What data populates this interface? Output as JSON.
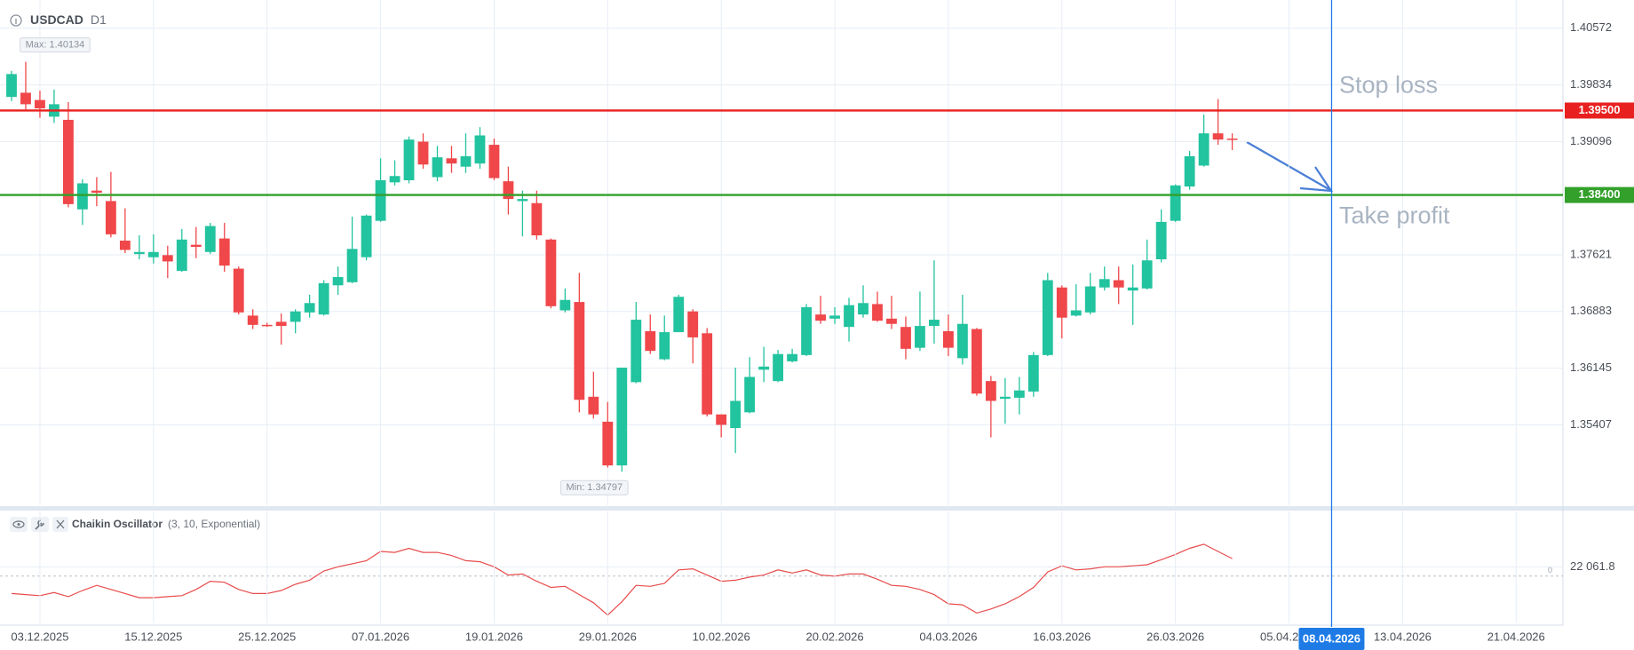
{
  "chart_data": [
    {
      "type": "candlestick",
      "symbol": "USDCAD",
      "timeframe": "D1",
      "up_color": "#22c39f",
      "down_color": "#f0474a",
      "open": [
        1.39677,
        1.39732,
        1.39637,
        1.3942,
        1.39379,
        1.38213,
        1.38457,
        1.38321,
        1.37806,
        1.37631,
        1.3759,
        1.37617,
        1.37413,
        1.37752,
        1.37658,
        1.37834,
        1.37441,
        1.3683,
        1.36709,
        1.36749,
        1.36749,
        1.36871,
        1.36844,
        1.37224,
        1.37264,
        1.3759,
        1.38064,
        1.38565,
        1.38592,
        1.39095,
        1.38633,
        1.38878,
        1.38769,
        1.3881,
        1.39054,
        1.38579,
        1.38321,
        1.38294,
        1.3782,
        1.36898,
        1.37007,
        1.35773,
        1.35448,
        1.34879,
        1.35963,
        1.36627,
        1.36261,
        1.36614,
        1.36884,
        1.366,
        1.35543,
        1.35366,
        1.3557,
        1.36125,
        1.35977,
        1.36234,
        1.36316,
        1.36844,
        1.3679,
        1.36682,
        1.36844,
        1.3698,
        1.3679,
        1.36682,
        1.36411,
        1.36695,
        1.36627,
        1.36275,
        1.36655,
        1.35977,
        1.35746,
        1.3576,
        1.35841,
        1.36316,
        1.37196,
        1.3683,
        1.36871,
        1.37196,
        1.37291,
        1.37156,
        1.37183,
        1.37563,
        1.38064,
        1.38511,
        1.38783,
        1.39203,
        1.39135
      ],
      "high": [
        1.40016,
        1.40134,
        1.39759,
        1.39773,
        1.3961,
        1.38606,
        1.38633,
        1.38701,
        1.38227,
        1.37875,
        1.37888,
        1.37739,
        1.37956,
        1.37983,
        1.38037,
        1.38037,
        1.37468,
        1.36912,
        1.36736,
        1.36857,
        1.36912,
        1.37101,
        1.37291,
        1.37468,
        1.38119,
        1.38146,
        1.38878,
        1.38851,
        1.39162,
        1.39203,
        1.3904,
        1.3904,
        1.39203,
        1.39284,
        1.39135,
        1.38769,
        1.38457,
        1.38457,
        1.37834,
        1.37183,
        1.37386,
        1.36099,
        1.35706,
        1.36152,
        1.37007,
        1.36844,
        1.3683,
        1.37101,
        1.36912,
        1.36668,
        1.35543,
        1.36152,
        1.36288,
        1.36424,
        1.36383,
        1.36397,
        1.3698,
        1.37088,
        1.36939,
        1.37061,
        1.37224,
        1.37142,
        1.37088,
        1.36817,
        1.37142,
        1.37549,
        1.36844,
        1.37101,
        1.36668,
        1.36044,
        1.36017,
        1.36031,
        1.36356,
        1.37386,
        1.37224,
        1.37237,
        1.37386,
        1.37468,
        1.37468,
        1.37495,
        1.3782,
        1.38213,
        1.38538,
        1.38973,
        1.39447,
        1.3965,
        1.39203
      ],
      "low": [
        1.39623,
        1.39514,
        1.39406,
        1.39339,
        1.3824,
        1.3801,
        1.38254,
        1.37848,
        1.37644,
        1.37563,
        1.37508,
        1.37318,
        1.37399,
        1.37577,
        1.37631,
        1.37399,
        1.36844,
        1.36655,
        1.36682,
        1.36451,
        1.366,
        1.36803,
        1.3683,
        1.37101,
        1.37251,
        1.37549,
        1.3805,
        1.38525,
        1.38552,
        1.38742,
        1.38579,
        1.38688,
        1.38688,
        1.38742,
        1.38592,
        1.38146,
        1.37861,
        1.3782,
        1.36925,
        1.36871,
        1.3557,
        1.35489,
        1.34852,
        1.34797,
        1.35949,
        1.36329,
        1.36248,
        1.36614,
        1.36207,
        1.35516,
        1.35244,
        1.3504,
        1.35557,
        1.35963,
        1.35963,
        1.3622,
        1.36302,
        1.36722,
        1.36722,
        1.36492,
        1.36803,
        1.36749,
        1.36655,
        1.36261,
        1.3637,
        1.36465,
        1.36302,
        1.36193,
        1.35787,
        1.35244,
        1.35421,
        1.35543,
        1.35773,
        1.36302,
        1.36532,
        1.36817,
        1.36844,
        1.37156,
        1.3698,
        1.36709,
        1.37169,
        1.37522,
        1.3805,
        1.3847,
        1.38769,
        1.39054,
        1.38986
      ],
      "close": [
        1.39975,
        1.39582,
        1.39528,
        1.39582,
        1.38281,
        1.38552,
        1.3843,
        1.37888,
        1.37685,
        1.37658,
        1.37658,
        1.37535,
        1.3782,
        1.37725,
        1.37996,
        1.37481,
        1.36871,
        1.36709,
        1.36695,
        1.36695,
        1.36884,
        1.36993,
        1.37251,
        1.37332,
        1.37698,
        1.38132,
        1.38592,
        1.38647,
        1.39122,
        1.38797,
        1.38891,
        1.3881,
        1.38905,
        1.39176,
        1.3862,
        1.38348,
        1.38348,
        1.37875,
        1.36952,
        1.37034,
        1.35733,
        1.35543,
        1.34879,
        1.36152,
        1.36776,
        1.3637,
        1.36614,
        1.37074,
        1.36546,
        1.35543,
        1.35407,
        1.35719,
        1.36031,
        1.36166,
        1.36329,
        1.36329,
        1.36939,
        1.36763,
        1.3683,
        1.36966,
        1.36993,
        1.36763,
        1.36722,
        1.36397,
        1.36695,
        1.36776,
        1.36411,
        1.36722,
        1.35814,
        1.35719,
        1.35773,
        1.35855,
        1.36316,
        1.37291,
        1.36803,
        1.36898,
        1.3721,
        1.37305,
        1.37196,
        1.37196,
        1.37549,
        1.3805,
        1.38525,
        1.38905,
        1.39203,
        1.39122,
        1.39122
      ],
      "max_label": "Max: 1.40134",
      "min_label": "Min: 1.34797",
      "lines": [
        {
          "name": "Stop loss",
          "value": 1.395,
          "label": "1.39500",
          "color": "#e8201f"
        },
        {
          "name": "Take profit",
          "value": 1.384,
          "label": "1.38400",
          "color": "#32a02a"
        }
      ],
      "xlim": [
        -0.5,
        109.3
      ],
      "xticks": [
        {
          "value": 2,
          "label": "03.12.2025"
        },
        {
          "value": 10,
          "label": "15.12.2025"
        },
        {
          "value": 18,
          "label": "25.12.2025"
        },
        {
          "value": 26,
          "label": "07.01.2026"
        },
        {
          "value": 34,
          "label": "19.01.2026"
        },
        {
          "value": 42,
          "label": "29.01.2026"
        },
        {
          "value": 50,
          "label": "10.02.2026"
        },
        {
          "value": 58,
          "label": "20.02.2026"
        },
        {
          "value": 66,
          "label": "04.03.2026"
        },
        {
          "value": 74,
          "label": "16.03.2026"
        },
        {
          "value": 82,
          "label": "26.03.2026"
        },
        {
          "value": 90,
          "label": "05.04.2026"
        },
        {
          "value": 98,
          "label": "13.04.2026"
        },
        {
          "value": 106,
          "label": "21.04.2026"
        }
      ],
      "cursor": {
        "x": 93,
        "label": "08.04.2026",
        "color": "#1e7be6"
      },
      "ylim": [
        1.3436,
        1.4087
      ],
      "yticks": [
        1.35407,
        1.36145,
        1.36883,
        1.37621,
        1.39096,
        1.39834,
        1.40572
      ],
      "grid": true
    },
    {
      "type": "line",
      "name": "Chaikin Oscillator",
      "params": "(3, 10, Exponential)",
      "color": "#e84b4b",
      "values": [
        -41700,
        -44100,
        -46600,
        -39200,
        -49000,
        -34300,
        -22100,
        -31900,
        -41700,
        -51500,
        -51500,
        -49000,
        -46600,
        -31900,
        -12300,
        -14700,
        -31900,
        -41700,
        -41700,
        -34300,
        -19600,
        -9800,
        12300,
        22100,
        29400,
        36800,
        58800,
        56400,
        66200,
        56400,
        56400,
        49000,
        36800,
        34300,
        22100,
        2500,
        4900,
        -12300,
        -27000,
        -24500,
        -44100,
        -63700,
        -93100,
        -61300,
        -22100,
        -24500,
        -17200,
        14700,
        17200,
        2500,
        -12300,
        -9800,
        -2500,
        2500,
        14700,
        7400,
        14700,
        2500,
        0,
        4900,
        4900,
        -7400,
        -22100,
        -24500,
        -31900,
        -44100,
        -66200,
        -68600,
        -88200,
        -78400,
        -66200,
        -49000,
        -27000,
        9800,
        24500,
        14700,
        17200,
        22100,
        22100,
        24500,
        27000,
        39200,
        51500,
        66200,
        76000,
        58800,
        41700
      ],
      "ylim": [
        -112760,
        151980
      ],
      "yticks": [
        0,
        {
          "value": 22061.8,
          "label": "22 061.8"
        }
      ]
    }
  ]
}
